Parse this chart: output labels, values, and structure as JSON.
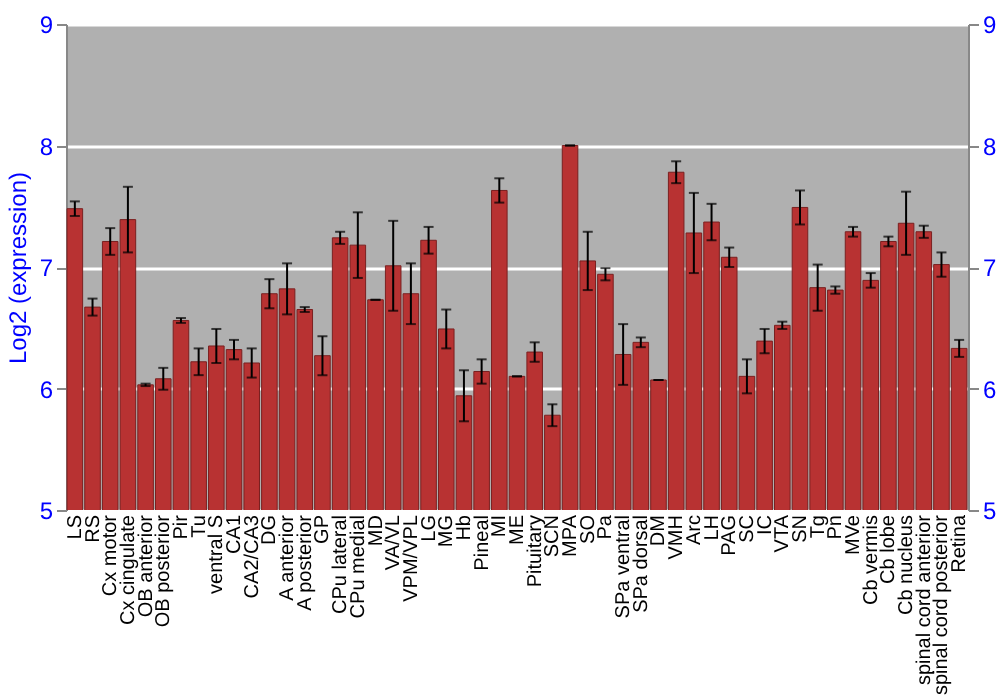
{
  "chart_data": {
    "type": "bar",
    "ylabel": "Log2 (expression)",
    "categories": [
      "LS",
      "RS",
      "Cx motor",
      "Cx cingulate",
      "OB anterior",
      "OB posterior",
      "Pir",
      "Tu",
      "ventral S",
      "CA1",
      "CA2/CA3",
      "DG",
      "A anterior",
      "A posterior",
      "GP",
      "CPu lateral",
      "CPu medial",
      "MD",
      "VA/VL",
      "VPM/VPL",
      "LG",
      "MG",
      "Hb",
      "Pineal",
      "MI",
      "ME",
      "Pituitary",
      "SCN",
      "MPA",
      "SO",
      "Pa",
      "SPa ventral",
      "SPa dorsal",
      "DM",
      "VMH",
      "Arc",
      "LH",
      "PAG",
      "SC",
      "IC",
      "VTA",
      "SN",
      "Tg",
      "Pn",
      "MVe",
      "Cb vermis",
      "Cb lobe",
      "Cb nucleus",
      "spinal cord anterior",
      "spinal cord posterior",
      "Retina"
    ],
    "series": [
      {
        "color": "#b83232",
        "values": [
          7.48,
          6.67,
          7.21,
          7.39,
          6.03,
          6.08,
          6.56,
          6.22,
          6.35,
          6.32,
          6.21,
          6.78,
          6.82,
          6.65,
          6.27,
          7.24,
          7.18,
          6.73,
          7.01,
          6.78,
          7.22,
          6.49,
          5.94,
          6.14,
          7.63,
          6.1,
          6.3,
          5.78,
          8.0,
          7.05,
          6.94,
          6.28,
          6.38,
          6.07,
          7.78,
          7.28,
          7.37,
          7.08,
          6.1,
          6.39,
          6.52,
          7.49,
          6.83,
          6.81,
          7.29,
          6.89,
          7.21,
          7.36,
          7.29,
          7.02,
          6.33
        ],
        "errors": [
          0.06,
          0.07,
          0.11,
          0.27,
          0.01,
          0.09,
          0.02,
          0.11,
          0.14,
          0.08,
          0.12,
          0.12,
          0.21,
          0.02,
          0.16,
          0.05,
          0.27,
          0,
          0.37,
          0.25,
          0.11,
          0.16,
          0.21,
          0.1,
          0.1,
          0,
          0.08,
          0.09,
          0,
          0.24,
          0.05,
          0.25,
          0.04,
          0,
          0.09,
          0.33,
          0.15,
          0.08,
          0.14,
          0.1,
          0.03,
          0.14,
          0.19,
          0.03,
          0.04,
          0.06,
          0.04,
          0.26,
          0.05,
          0.1,
          0.07
        ]
      }
    ],
    "ylim": [
      5,
      9
    ],
    "yticks": [
      5,
      6,
      7,
      8,
      9
    ],
    "y2lim": [
      5,
      9
    ],
    "y2ticks": [
      5,
      6,
      7,
      8,
      9
    ],
    "grid": "y"
  }
}
